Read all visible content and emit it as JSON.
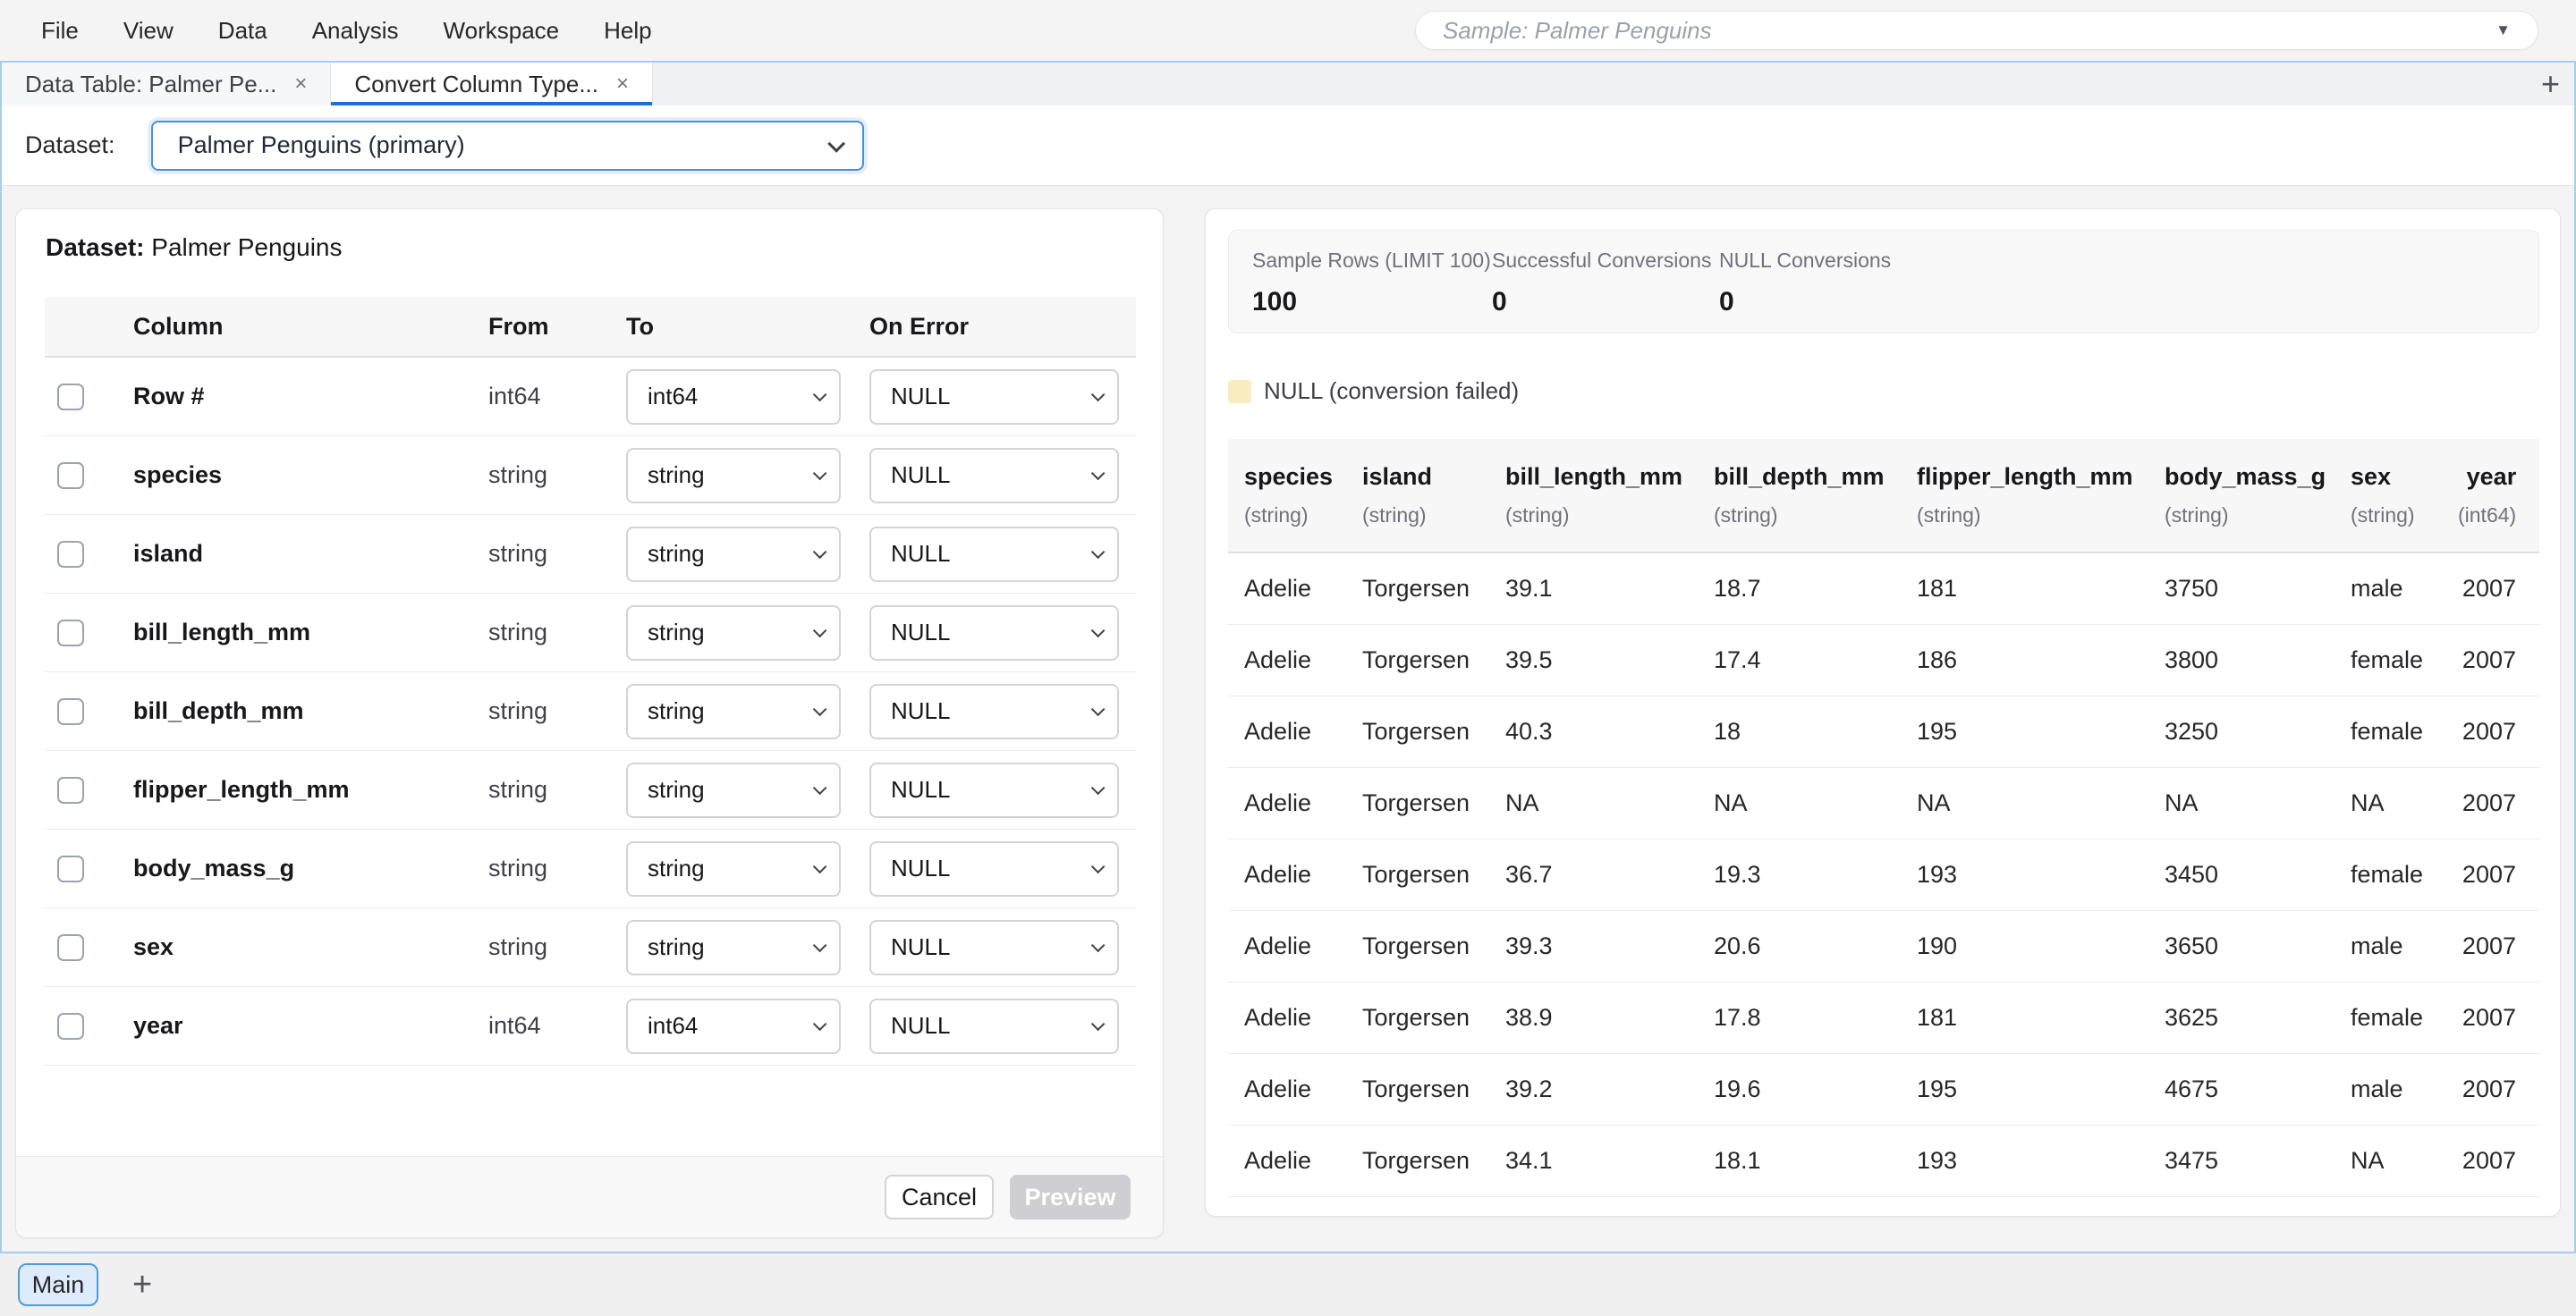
{
  "menu_bar": {
    "items": [
      "File",
      "View",
      "Data",
      "Analysis",
      "Workspace",
      "Help"
    ],
    "sample_selector": {
      "value": "Sample: Palmer Penguins",
      "caret": "▼"
    }
  },
  "tab_bar": {
    "tabs": [
      {
        "label": "Data Table: Palmer Pe...",
        "close": "×",
        "active": false
      },
      {
        "label": "Convert Column Type...",
        "close": "×",
        "active": true
      }
    ],
    "add_button": "+"
  },
  "dataset_bar": {
    "label": "Dataset:",
    "selected_option": "Palmer Penguins (primary)"
  },
  "convert_panel": {
    "dataset_label": "Dataset:",
    "dataset_name": "Palmer Penguins",
    "columns_table": {
      "headers": {
        "column": "Column",
        "from": "From",
        "to": "To",
        "on_error": "On Error"
      },
      "rows": [
        {
          "column": "Row #",
          "from": "int64",
          "to": "int64",
          "on_error": "NULL",
          "checked": false
        },
        {
          "column": "species",
          "from": "string",
          "to": "string",
          "on_error": "NULL",
          "checked": false
        },
        {
          "column": "island",
          "from": "string",
          "to": "string",
          "on_error": "NULL",
          "checked": false
        },
        {
          "column": "bill_length_mm",
          "from": "string",
          "to": "string",
          "on_error": "NULL",
          "checked": false
        },
        {
          "column": "bill_depth_mm",
          "from": "string",
          "to": "string",
          "on_error": "NULL",
          "checked": false
        },
        {
          "column": "flipper_length_mm",
          "from": "string",
          "to": "string",
          "on_error": "NULL",
          "checked": false
        },
        {
          "column": "body_mass_g",
          "from": "string",
          "to": "string",
          "on_error": "NULL",
          "checked": false
        },
        {
          "column": "sex",
          "from": "string",
          "to": "string",
          "on_error": "NULL",
          "checked": false
        },
        {
          "column": "year",
          "from": "int64",
          "to": "int64",
          "on_error": "NULL",
          "checked": false
        }
      ]
    },
    "buttons": {
      "cancel": "Cancel",
      "preview": "Preview",
      "preview_disabled": true
    }
  },
  "preview_panel": {
    "stats": [
      {
        "label": "Sample Rows (LIMIT 100)",
        "value": "100"
      },
      {
        "label": "Successful Conversions",
        "value": "0"
      },
      {
        "label": "NULL Conversions",
        "value": "0"
      }
    ],
    "legend": {
      "label": "NULL (conversion failed)",
      "swatch_color": "#f8ecc0"
    },
    "data_table": {
      "columns": [
        {
          "name": "species",
          "type": "(string)"
        },
        {
          "name": "island",
          "type": "(string)"
        },
        {
          "name": "bill_length_mm",
          "type": "(string)"
        },
        {
          "name": "bill_depth_mm",
          "type": "(string)"
        },
        {
          "name": "flipper_length_mm",
          "type": "(string)"
        },
        {
          "name": "body_mass_g",
          "type": "(string)"
        },
        {
          "name": "sex",
          "type": "(string)"
        },
        {
          "name": "year",
          "type": "(int64)"
        }
      ],
      "rows": [
        [
          "Adelie",
          "Torgersen",
          "39.1",
          "18.7",
          "181",
          "3750",
          "male",
          "2007"
        ],
        [
          "Adelie",
          "Torgersen",
          "39.5",
          "17.4",
          "186",
          "3800",
          "female",
          "2007"
        ],
        [
          "Adelie",
          "Torgersen",
          "40.3",
          "18",
          "195",
          "3250",
          "female",
          "2007"
        ],
        [
          "Adelie",
          "Torgersen",
          "NA",
          "NA",
          "NA",
          "NA",
          "NA",
          "2007"
        ],
        [
          "Adelie",
          "Torgersen",
          "36.7",
          "19.3",
          "193",
          "3450",
          "female",
          "2007"
        ],
        [
          "Adelie",
          "Torgersen",
          "39.3",
          "20.6",
          "190",
          "3650",
          "male",
          "2007"
        ],
        [
          "Adelie",
          "Torgersen",
          "38.9",
          "17.8",
          "181",
          "3625",
          "female",
          "2007"
        ],
        [
          "Adelie",
          "Torgersen",
          "39.2",
          "19.6",
          "195",
          "4675",
          "male",
          "2007"
        ],
        [
          "Adelie",
          "Torgersen",
          "34.1",
          "18.1",
          "193",
          "3475",
          "NA",
          "2007"
        ]
      ]
    }
  },
  "workspace_bar": {
    "active_sheet": "Main",
    "add_button": "+"
  },
  "colors": {
    "accent_blue": "#1e6fd0",
    "frame_border": "#a9cbee",
    "select_border": "#4a90d9",
    "null_yellow": "#f8ecc0",
    "disabled_button": "#cfcfd3"
  }
}
